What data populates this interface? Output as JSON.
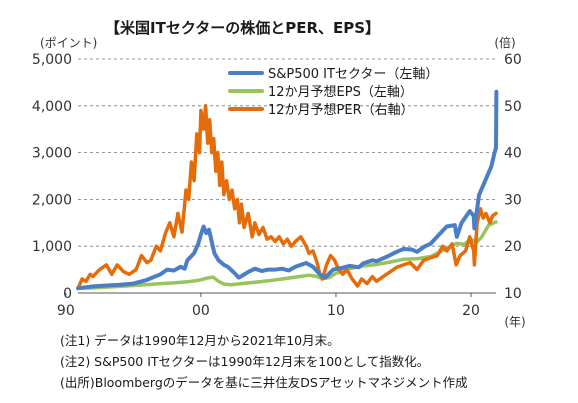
{
  "chart_data": {
    "type": "line",
    "title": "【米国ITセクターの株価とPER、EPS】",
    "left_unit": "(ポイント)",
    "right_unit": "(倍)",
    "x_unit": "(年)",
    "x_ticks": [
      1990,
      2000,
      2010,
      2020
    ],
    "x_tick_labels": [
      "90",
      "00",
      "10",
      "20"
    ],
    "xlim": [
      1990.9,
      2021.85
    ],
    "left_axis": {
      "ylim": [
        0,
        5000
      ],
      "ticks": [
        0,
        1000,
        2000,
        3000,
        4000,
        5000
      ],
      "tick_labels": [
        "0",
        "1,000",
        "2,000",
        "3,000",
        "4,000",
        "5,000"
      ]
    },
    "right_axis": {
      "ylim": [
        10,
        60
      ],
      "ticks": [
        10,
        20,
        30,
        40,
        50,
        60
      ],
      "tick_labels": [
        "10",
        "20",
        "30",
        "40",
        "50",
        "60"
      ]
    },
    "grid": "horizontal-dashed",
    "legend_position": "top-center",
    "series": [
      {
        "name": "S&P500 ITセクター（左軸）",
        "axis": "left",
        "color": "#4a7ec6",
        "points": [
          [
            1990.9,
            100
          ],
          [
            1992.0,
            140
          ],
          [
            1993.0,
            160
          ],
          [
            1994.0,
            175
          ],
          [
            1995.0,
            200
          ],
          [
            1996.0,
            280
          ],
          [
            1997.0,
            400
          ],
          [
            1997.5,
            500
          ],
          [
            1998.0,
            480
          ],
          [
            1998.5,
            560
          ],
          [
            1998.8,
            520
          ],
          [
            1999.0,
            700
          ],
          [
            1999.5,
            850
          ],
          [
            1999.8,
            1050
          ],
          [
            2000.0,
            1250
          ],
          [
            2000.2,
            1420
          ],
          [
            2000.4,
            1280
          ],
          [
            2000.6,
            1350
          ],
          [
            2000.8,
            1100
          ],
          [
            2001.0,
            850
          ],
          [
            2001.3,
            700
          ],
          [
            2001.7,
            600
          ],
          [
            2002.0,
            560
          ],
          [
            2002.5,
            420
          ],
          [
            2002.8,
            330
          ],
          [
            2003.0,
            360
          ],
          [
            2003.5,
            450
          ],
          [
            2004.0,
            520
          ],
          [
            2004.5,
            470
          ],
          [
            2005.0,
            500
          ],
          [
            2005.5,
            500
          ],
          [
            2006.0,
            520
          ],
          [
            2006.5,
            480
          ],
          [
            2007.0,
            560
          ],
          [
            2007.8,
            640
          ],
          [
            2008.3,
            560
          ],
          [
            2008.8,
            400
          ],
          [
            2009.2,
            330
          ],
          [
            2009.8,
            500
          ],
          [
            2010.5,
            540
          ],
          [
            2011.0,
            580
          ],
          [
            2011.7,
            550
          ],
          [
            2012.0,
            630
          ],
          [
            2012.7,
            700
          ],
          [
            2013.0,
            680
          ],
          [
            2013.8,
            780
          ],
          [
            2014.5,
            880
          ],
          [
            2015.0,
            940
          ],
          [
            2015.6,
            930
          ],
          [
            2016.0,
            880
          ],
          [
            2016.6,
            1000
          ],
          [
            2017.0,
            1050
          ],
          [
            2017.8,
            1300
          ],
          [
            2018.2,
            1420
          ],
          [
            2018.8,
            1450
          ],
          [
            2018.95,
            1200
          ],
          [
            2019.3,
            1500
          ],
          [
            2019.9,
            1750
          ],
          [
            2020.2,
            1650
          ],
          [
            2020.25,
            1380
          ],
          [
            2020.6,
            2100
          ],
          [
            2020.9,
            2300
          ],
          [
            2021.2,
            2500
          ],
          [
            2021.5,
            2700
          ],
          [
            2021.75,
            3000
          ],
          [
            2021.85,
            3100
          ],
          [
            2021.88,
            4300
          ]
        ]
      },
      {
        "name": "12か月予想EPS（左軸）",
        "axis": "left",
        "color": "#98c45d",
        "points": [
          [
            1990.9,
            100
          ],
          [
            1992.0,
            110
          ],
          [
            1993.0,
            125
          ],
          [
            1994.0,
            140
          ],
          [
            1995.0,
            160
          ],
          [
            1996.0,
            180
          ],
          [
            1997.0,
            200
          ],
          [
            1998.0,
            215
          ],
          [
            1999.0,
            240
          ],
          [
            1999.8,
            270
          ],
          [
            2000.5,
            320
          ],
          [
            2000.9,
            340
          ],
          [
            2001.3,
            250
          ],
          [
            2001.7,
            190
          ],
          [
            2002.2,
            175
          ],
          [
            2003.0,
            200
          ],
          [
            2004.0,
            230
          ],
          [
            2005.0,
            260
          ],
          [
            2006.0,
            300
          ],
          [
            2007.0,
            340
          ],
          [
            2008.0,
            380
          ],
          [
            2008.5,
            360
          ],
          [
            2009.0,
            310
          ],
          [
            2009.5,
            330
          ],
          [
            2010.0,
            420
          ],
          [
            2011.0,
            520
          ],
          [
            2012.0,
            580
          ],
          [
            2013.0,
            610
          ],
          [
            2014.0,
            660
          ],
          [
            2015.0,
            720
          ],
          [
            2016.0,
            730
          ],
          [
            2017.0,
            780
          ],
          [
            2018.0,
            920
          ],
          [
            2018.9,
            1060
          ],
          [
            2019.5,
            1040
          ],
          [
            2020.0,
            1150
          ],
          [
            2020.4,
            1080
          ],
          [
            2020.8,
            1200
          ],
          [
            2021.3,
            1450
          ],
          [
            2021.85,
            1520
          ]
        ]
      },
      {
        "name": "12か月予想PER（右軸）",
        "axis": "right",
        "color": "#e46c0a",
        "points": [
          [
            1990.9,
            11
          ],
          [
            1991.2,
            13
          ],
          [
            1991.5,
            12.5
          ],
          [
            1991.8,
            14
          ],
          [
            1992.0,
            13.5
          ],
          [
            1992.5,
            15
          ],
          [
            1993.0,
            16
          ],
          [
            1993.4,
            14
          ],
          [
            1993.8,
            16
          ],
          [
            1994.3,
            14.5
          ],
          [
            1994.7,
            14
          ],
          [
            1995.2,
            15
          ],
          [
            1995.6,
            18
          ],
          [
            1996.0,
            16.5
          ],
          [
            1996.3,
            17
          ],
          [
            1996.7,
            20
          ],
          [
            1997.0,
            19
          ],
          [
            1997.4,
            23
          ],
          [
            1997.7,
            25
          ],
          [
            1998.0,
            22
          ],
          [
            1998.3,
            27
          ],
          [
            1998.6,
            23
          ],
          [
            1998.9,
            32
          ],
          [
            1999.1,
            30
          ],
          [
            1999.3,
            38
          ],
          [
            1999.5,
            34
          ],
          [
            1999.7,
            44
          ],
          [
            1999.9,
            40
          ],
          [
            2000.0,
            49
          ],
          [
            2000.2,
            45
          ],
          [
            2000.35,
            50
          ],
          [
            2000.5,
            42
          ],
          [
            2000.65,
            47
          ],
          [
            2000.8,
            40
          ],
          [
            2000.95,
            43
          ],
          [
            2001.1,
            36
          ],
          [
            2001.25,
            40
          ],
          [
            2001.4,
            33
          ],
          [
            2001.55,
            38
          ],
          [
            2001.7,
            31
          ],
          [
            2001.9,
            34
          ],
          [
            2002.1,
            30
          ],
          [
            2002.3,
            32
          ],
          [
            2002.5,
            28
          ],
          [
            2002.7,
            30
          ],
          [
            2002.85,
            25
          ],
          [
            2003.0,
            29
          ],
          [
            2003.2,
            24
          ],
          [
            2003.5,
            27
          ],
          [
            2003.8,
            22
          ],
          [
            2004.0,
            25
          ],
          [
            2004.3,
            22.5
          ],
          [
            2004.6,
            24
          ],
          [
            2004.9,
            21.5
          ],
          [
            2005.2,
            22
          ],
          [
            2005.5,
            21
          ],
          [
            2005.8,
            22
          ],
          [
            2006.1,
            20.5
          ],
          [
            2006.4,
            21.5
          ],
          [
            2006.7,
            20
          ],
          [
            2007.0,
            21
          ],
          [
            2007.4,
            22
          ],
          [
            2007.8,
            20
          ],
          [
            2008.0,
            18.5
          ],
          [
            2008.3,
            19
          ],
          [
            2008.6,
            16.5
          ],
          [
            2008.8,
            14
          ],
          [
            2009.0,
            13
          ],
          [
            2009.3,
            16
          ],
          [
            2009.6,
            18
          ],
          [
            2009.9,
            17
          ],
          [
            2010.2,
            15
          ],
          [
            2010.5,
            14
          ],
          [
            2010.8,
            15
          ],
          [
            2011.2,
            13
          ],
          [
            2011.6,
            11.5
          ],
          [
            2011.9,
            13
          ],
          [
            2012.3,
            12
          ],
          [
            2012.7,
            13.5
          ],
          [
            2013.0,
            12.5
          ],
          [
            2013.5,
            13.5
          ],
          [
            2014.0,
            14.5
          ],
          [
            2014.5,
            15.5
          ],
          [
            2015.0,
            16
          ],
          [
            2015.5,
            16.5
          ],
          [
            2016.0,
            15
          ],
          [
            2016.5,
            17
          ],
          [
            2017.0,
            17.5
          ],
          [
            2017.5,
            18
          ],
          [
            2017.9,
            20
          ],
          [
            2018.2,
            19
          ],
          [
            2018.6,
            20.5
          ],
          [
            2018.9,
            16
          ],
          [
            2019.2,
            18
          ],
          [
            2019.6,
            19
          ],
          [
            2019.9,
            22
          ],
          [
            2020.2,
            19
          ],
          [
            2020.25,
            16
          ],
          [
            2020.45,
            25
          ],
          [
            2020.7,
            28
          ],
          [
            2020.9,
            26
          ],
          [
            2021.1,
            27
          ],
          [
            2021.4,
            25
          ],
          [
            2021.6,
            26.5
          ],
          [
            2021.85,
            27
          ]
        ]
      }
    ]
  },
  "notes": [
    "(注1) データは1990年12月から2021年10月末。",
    "(注2) S&P500 ITセクターは1990年12月末を100として指数化。",
    "(出所)Bloombergのデータを基に三井住友DSアセットマネジメント作成"
  ]
}
